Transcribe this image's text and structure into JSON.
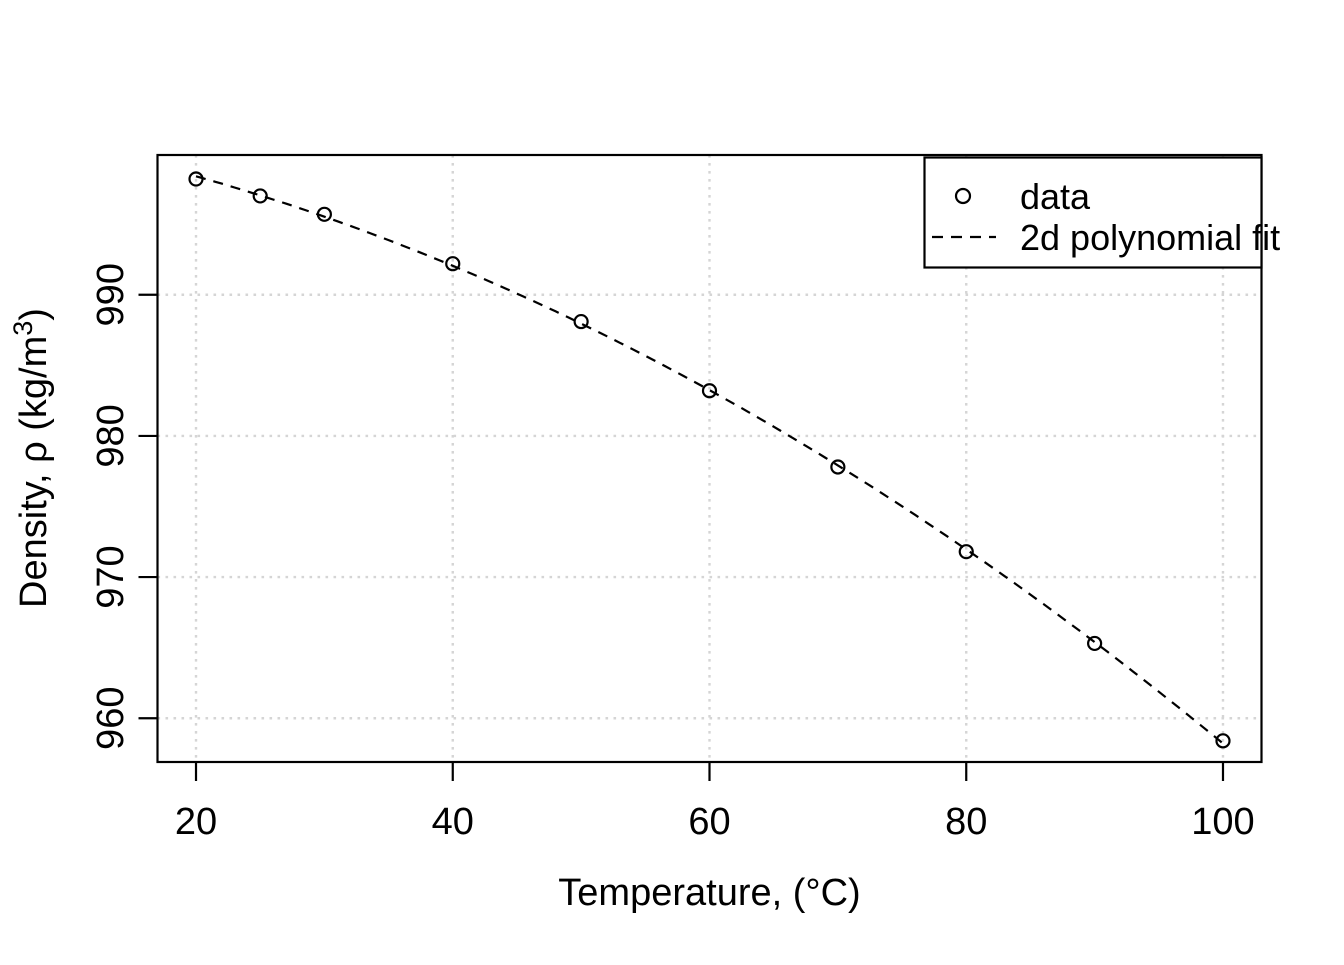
{
  "figure": {
    "background": "#ffffff",
    "axis_color": "#000000",
    "grid_color": "#d5d5d5",
    "line_color": "#000000",
    "marker_color": "#000000"
  },
  "chart_data": {
    "type": "scatter",
    "title": "",
    "xlabel": "Temperature, (°C)",
    "ylabel": "Density, ρ (kg/m³)",
    "ylabel_parts": {
      "main": "Density, ρ (kg/m",
      "sup": "3",
      "end": ")"
    },
    "xlim": [
      17,
      103
    ],
    "ylim": [
      956.9,
      999.9
    ],
    "x_ticks": [
      "20",
      "40",
      "60",
      "80",
      "100"
    ],
    "x_tick_values": [
      20,
      40,
      60,
      80,
      100
    ],
    "y_ticks": [
      "960",
      "970",
      "980",
      "990"
    ],
    "y_tick_values": [
      960,
      970,
      980,
      990
    ],
    "grid": "dotted",
    "x": [
      20,
      25,
      30,
      40,
      50,
      60,
      70,
      80,
      90,
      100
    ],
    "series": [
      {
        "name": "data",
        "type": "scatter",
        "marker": "open-circle",
        "values": [
          998.2,
          997.0,
          995.7,
          992.2,
          988.1,
          983.2,
          977.8,
          971.8,
          965.3,
          958.4
        ]
      },
      {
        "name": "2d polynomial fit",
        "type": "line",
        "line_style": "dashed",
        "fit": "polynomial-degree-2",
        "fit_range": [
          20,
          100
        ]
      }
    ],
    "legend": {
      "position": "topright",
      "entries": [
        {
          "marker": "open-circle",
          "label": "data"
        },
        {
          "marker": "dashed-line",
          "label": "2d polynomial fit"
        }
      ]
    }
  }
}
